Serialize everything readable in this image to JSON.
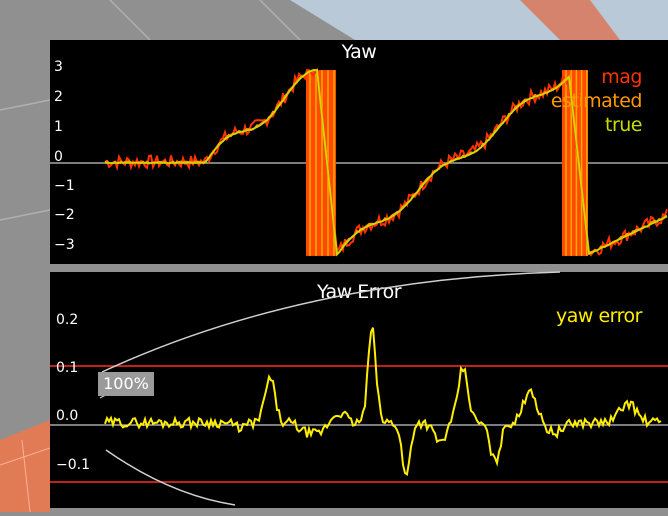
{
  "yaw_panel": {
    "title": "Yaw",
    "y_ticks": [
      "3",
      "2",
      "1",
      "0",
      "−1",
      "−2",
      "−3"
    ],
    "legend": [
      {
        "label": "mag",
        "color": "#ff3300"
      },
      {
        "label": "estimated",
        "color": "#ff9900"
      },
      {
        "label": "true",
        "color": "#c8dc00"
      }
    ]
  },
  "yaw_error_panel": {
    "title": "Yaw Error",
    "y_ticks": [
      "0.2",
      "0.1",
      "0.0",
      "−0.1"
    ],
    "legend": [
      {
        "label": "yaw error",
        "color": "#ffee00"
      }
    ],
    "threshold_color": "#c0221a"
  },
  "overlay": {
    "percent_label": "100%"
  }
}
